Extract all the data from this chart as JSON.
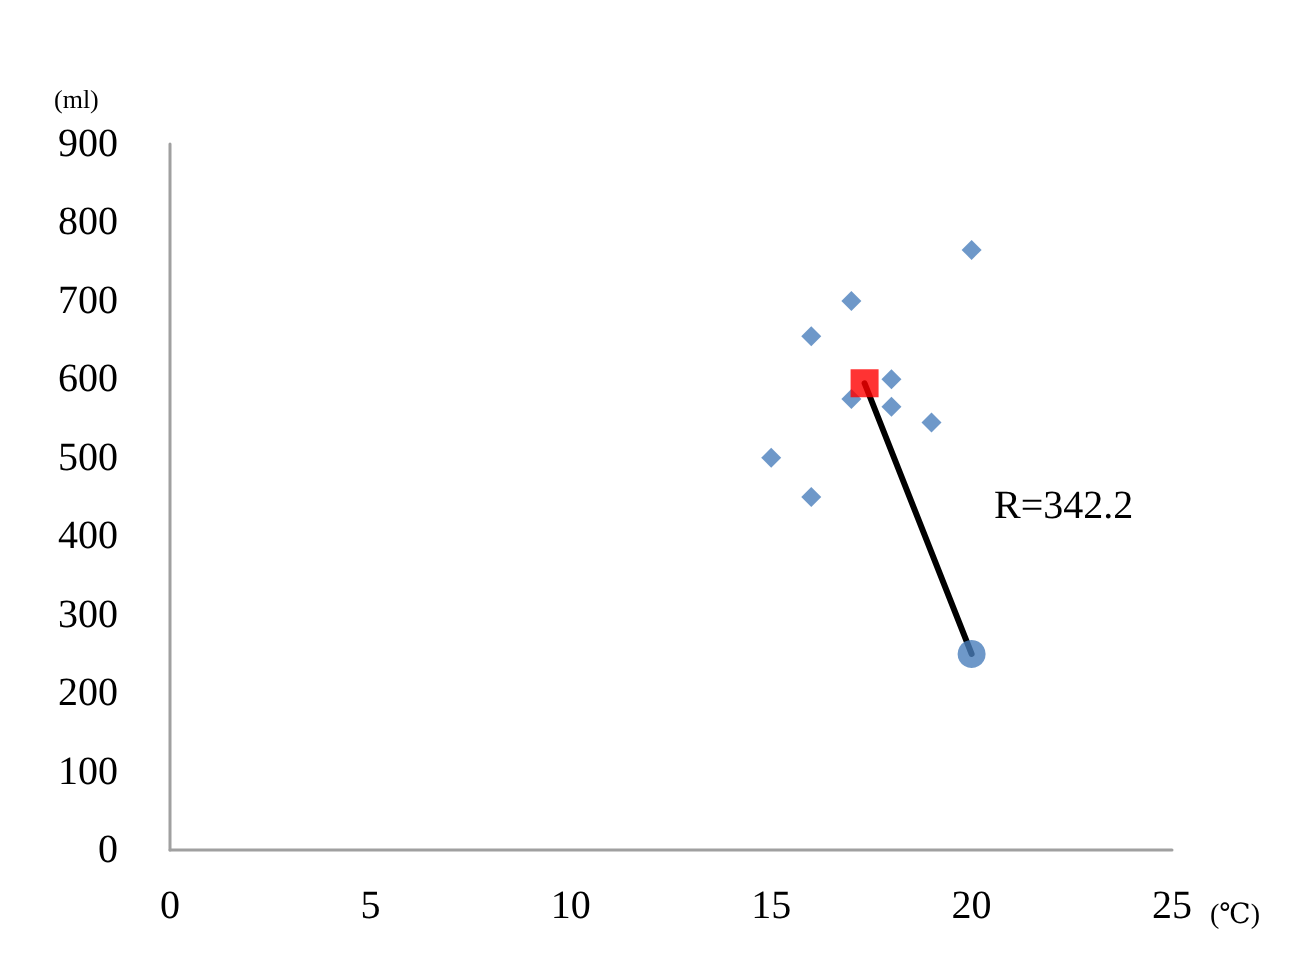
{
  "chart_data": {
    "type": "scatter",
    "xlabel": "(℃)",
    "ylabel": "(ml)",
    "xlim": [
      0,
      25
    ],
    "xticks": [
      0,
      5,
      10,
      15,
      20,
      25
    ],
    "ylim": [
      0,
      900
    ],
    "yticks": [
      0,
      100,
      200,
      300,
      400,
      500,
      600,
      700,
      800,
      900
    ],
    "grid": false,
    "series": [
      {
        "type": "line",
        "color": "#000000",
        "x": [
          17.33,
          20
        ],
        "values": [
          595,
          250
        ],
        "marker": "none",
        "line_style": "solid"
      },
      {
        "color": "#4a7ebb",
        "marker": "diamond",
        "x": [
          20,
          17,
          16,
          18,
          17,
          18,
          19,
          15,
          16
        ],
        "values": [
          765,
          700,
          655,
          600,
          575,
          565,
          545,
          500,
          450
        ]
      },
      {
        "color": "#ff0000",
        "marker": "square",
        "x": [
          17.33
        ],
        "values": [
          595
        ]
      },
      {
        "color": "#4a7ebb",
        "marker": "circle",
        "x": [
          20
        ],
        "values": [
          250
        ]
      }
    ],
    "annotations": [
      "R=342.2"
    ]
  }
}
